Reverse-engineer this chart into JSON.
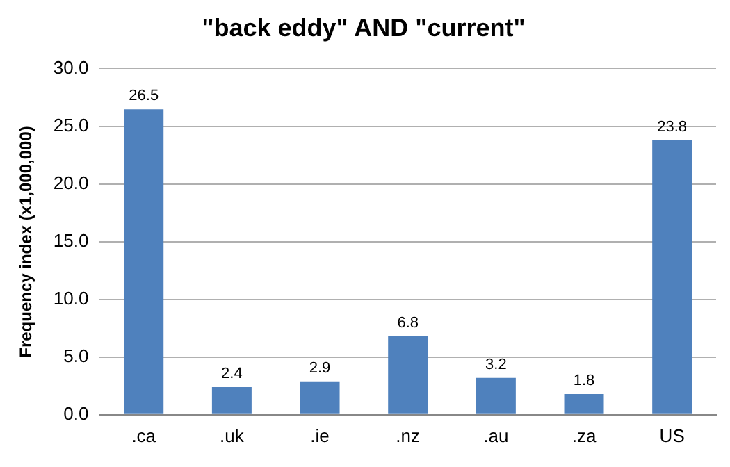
{
  "chart_data": {
    "type": "bar",
    "title": "\"back eddy\" AND \"current\"",
    "ylabel": "Frequency index (x1,000,000)",
    "categories": [
      ".ca",
      ".uk",
      ".ie",
      ".nz",
      ".au",
      ".za",
      "US"
    ],
    "values": [
      26.5,
      2.4,
      2.9,
      6.8,
      3.2,
      1.8,
      23.8
    ],
    "color": "#4f81bd",
    "ylim": [
      0,
      30
    ],
    "yticks": [
      {
        "value": 0,
        "label": "0.0"
      },
      {
        "value": 5,
        "label": "5.0"
      },
      {
        "value": 10,
        "label": "10.0"
      },
      {
        "value": 15,
        "label": "15.0"
      },
      {
        "value": 20,
        "label": "20.0"
      },
      {
        "value": 25,
        "label": "25.0"
      },
      {
        "value": 30,
        "label": "30.0"
      }
    ],
    "grid": "y",
    "data_labels": true,
    "legend": false
  }
}
